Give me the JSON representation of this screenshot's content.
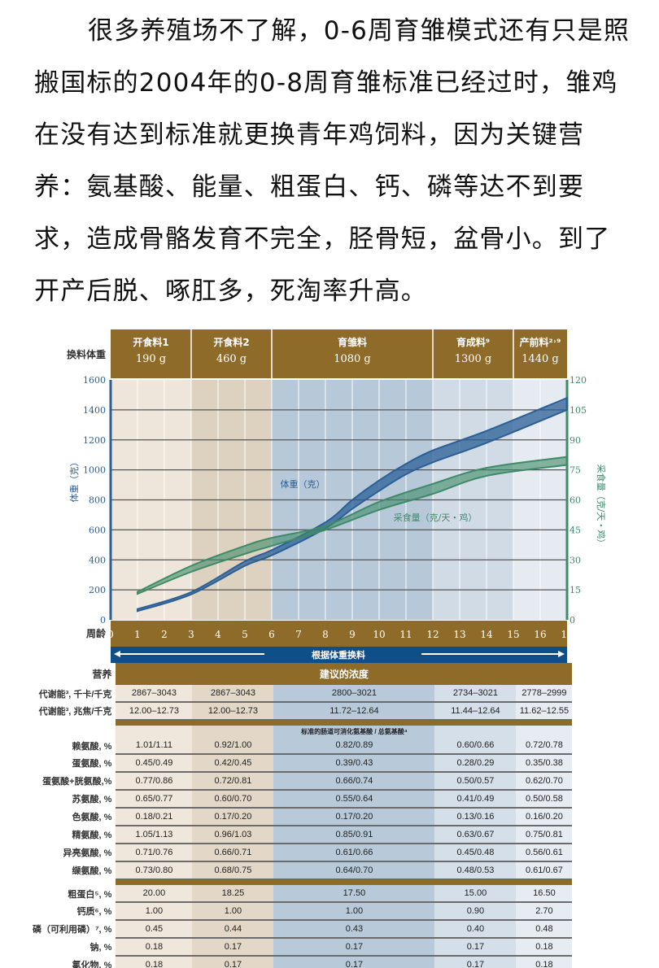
{
  "intro_text": "很多养殖场不了解，0-6周育雏模式还有只是照搬国标的2004年的0-8周育雏标准已经过时，雏鸡在没有达到标准就更换青年鸡饲料，因为关键营养：氨基酸、能量、粗蛋白、钙、磷等达不到要求，造成骨骼发育不完全，胫骨短，盆骨小。到了开产后脱、啄肛多，死淘率升高。",
  "feed_header": {
    "row_label": "换料体重",
    "phases": [
      {
        "name": "开食料1",
        "weight": "190 g",
        "weeks": [
          0,
          3
        ]
      },
      {
        "name": "开食料2",
        "weight": "460 g",
        "weeks": [
          3,
          6
        ]
      },
      {
        "name": "育雏料",
        "weight": "1080 g",
        "weeks": [
          6,
          12
        ]
      },
      {
        "name": "育成料⁹",
        "weight": "1300 g",
        "weeks": [
          12,
          15
        ]
      },
      {
        "name": "产前料²˒⁹",
        "weight": "1440 g",
        "weeks": [
          15,
          17
        ]
      }
    ]
  },
  "chart_data": {
    "type": "area",
    "xlabel": "周龄",
    "ylabel": "体重（克）",
    "ylabel_right": "采食量（克/天・鸡）",
    "xlim": [
      0,
      17
    ],
    "ylim": [
      0,
      1600
    ],
    "ylim_right": [
      0,
      120
    ],
    "x_ticks": [
      0,
      1,
      2,
      3,
      4,
      5,
      6,
      7,
      8,
      9,
      10,
      11,
      12,
      13,
      14,
      15,
      16,
      17
    ],
    "y_ticks": [
      0,
      200,
      400,
      600,
      800,
      1000,
      1200,
      1400,
      1600
    ],
    "y_ticks_right": [
      0,
      15,
      30,
      45,
      60,
      75,
      90,
      105,
      120
    ],
    "grid": true,
    "series": [
      {
        "name": "体重（克）",
        "axis": "left",
        "color": "#2b5f95",
        "x": [
          1,
          3,
          5,
          6,
          8,
          9,
          10,
          11,
          12,
          14,
          17
        ],
        "low": [
          58,
          170,
          360,
          430,
          610,
          740,
          860,
          970,
          1050,
          1180,
          1400
        ],
        "high": [
          72,
          185,
          390,
          465,
          650,
          800,
          930,
          1040,
          1130,
          1260,
          1480
        ]
      },
      {
        "name": "采食量（克/天・鸡）",
        "axis": "right",
        "color": "#3f8a68",
        "x": [
          1,
          3,
          5,
          6,
          8,
          10,
          12,
          14,
          17
        ],
        "low": [
          13,
          24,
          33,
          37,
          45,
          55,
          63,
          72,
          77.5
        ],
        "high": [
          14,
          27,
          37,
          41,
          47,
          59,
          68,
          76,
          81.5
        ]
      }
    ],
    "banner": "根据体重换料"
  },
  "table": {
    "nutrient_label": "营养",
    "header": "建议的浓度",
    "energy_rows": [
      {
        "label": "代谢能³, 千卡/千克",
        "values": [
          "2867–3043",
          "2867–3043",
          "2800–3021",
          "2734–3021",
          "2778–2999"
        ]
      },
      {
        "label": "代谢能³, 兆焦/千克",
        "values": [
          "12.00–12.73",
          "12.00–12.73",
          "11.72–12.64",
          "11.44–12.64",
          "11.62–12.55"
        ]
      }
    ],
    "amino_subheader": "标准的肠道可消化氨基酸 / 总氨基酸⁴",
    "amino_rows": [
      {
        "label": "赖氨酸, %",
        "values": [
          "1.01/1.11",
          "0.92/1.00",
          "0.82/0.89",
          "0.60/0.66",
          "0.72/0.78"
        ]
      },
      {
        "label": "蛋氨酸, %",
        "values": [
          "0.45/0.49",
          "0.42/0.45",
          "0.39/0.43",
          "0.28/0.29",
          "0.35/0.38"
        ]
      },
      {
        "label": "蛋氨酸+胱氨酸,%",
        "values": [
          "0.77/0.86",
          "0.72/0.81",
          "0.66/0.74",
          "0.50/0.57",
          "0.62/0.70"
        ]
      },
      {
        "label": "苏氨酸, %",
        "values": [
          "0.65/0.77",
          "0.60/0.70",
          "0.55/0.64",
          "0.41/0.49",
          "0.50/0.58"
        ]
      },
      {
        "label": "色氨酸, %",
        "values": [
          "0.18/0.21",
          "0.17/0.20",
          "0.17/0.20",
          "0.13/0.16",
          "0.16/0.20"
        ]
      },
      {
        "label": "精氨酸, %",
        "values": [
          "1.05/1.13",
          "0.96/1.03",
          "0.85/0.91",
          "0.63/0.67",
          "0.75/0.81"
        ]
      },
      {
        "label": "异亮氨酸, %",
        "values": [
          "0.71/0.76",
          "0.66/0.71",
          "0.61/0.66",
          "0.45/0.48",
          "0.56/0.61"
        ]
      },
      {
        "label": "缬氨酸, %",
        "values": [
          "0.73/0.80",
          "0.68/0.75",
          "0.64/0.70",
          "0.48/0.53",
          "0.61/0.67"
        ]
      }
    ],
    "other_rows": [
      {
        "label": "粗蛋白⁵, %",
        "values": [
          "20.00",
          "18.25",
          "17.50",
          "15.00",
          "16.50"
        ]
      },
      {
        "label": "钙质⁶, %",
        "values": [
          "1.00",
          "1.00",
          "1.00",
          "0.90",
          "2.70"
        ]
      },
      {
        "label": "磷（可利用磷）⁷, %",
        "values": [
          "0.45",
          "0.44",
          "0.43",
          "0.40",
          "0.48"
        ]
      },
      {
        "label": "钠, %",
        "values": [
          "0.18",
          "0.17",
          "0.17",
          "0.17",
          "0.18"
        ]
      },
      {
        "label": "氯化物, %",
        "values": [
          "0.18",
          "0.17",
          "0.17",
          "0.17",
          "0.18"
        ]
      }
    ]
  }
}
